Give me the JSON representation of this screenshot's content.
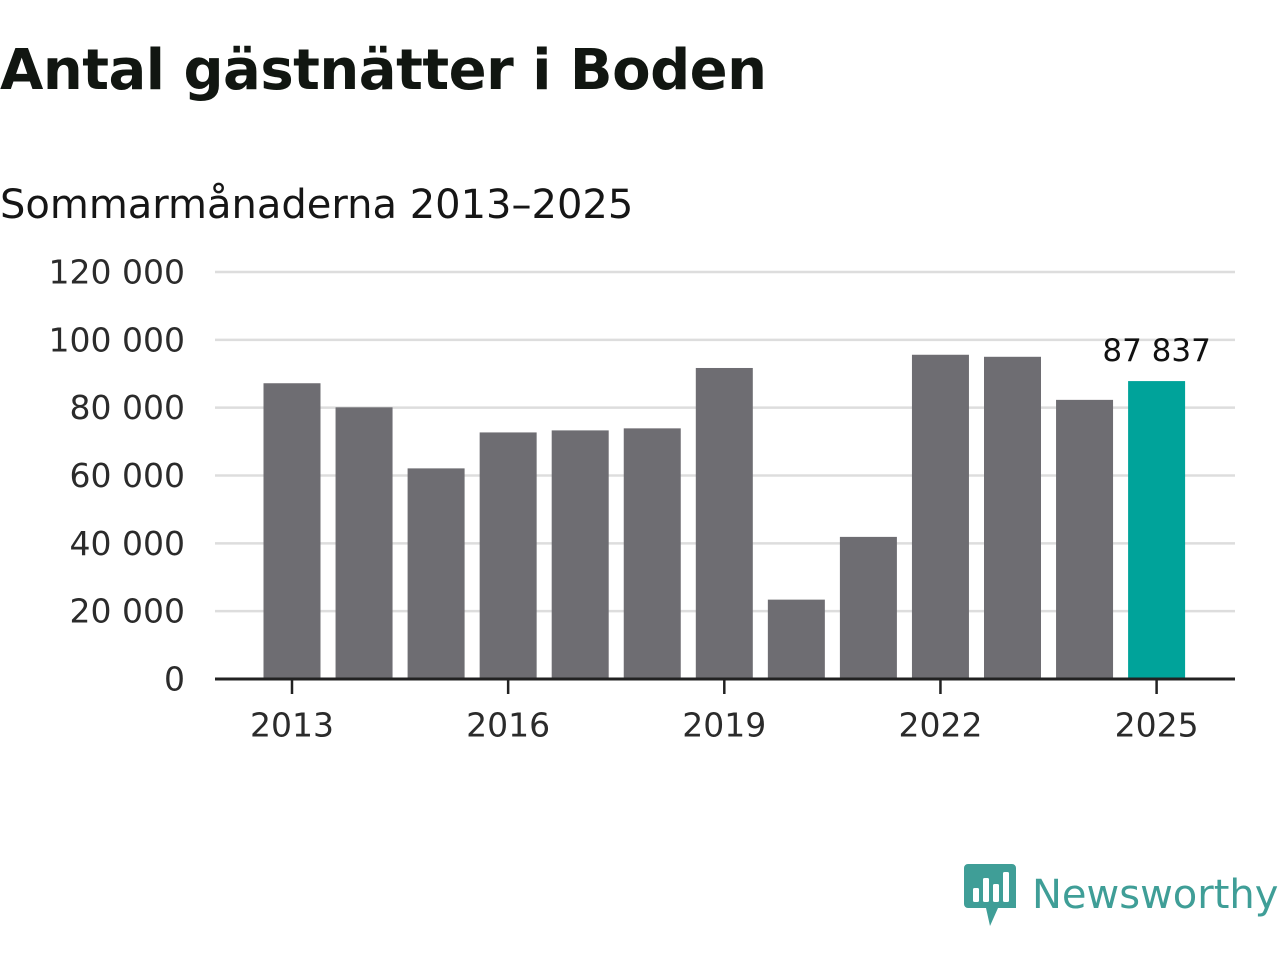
{
  "title": "Antal gästnätter i Boden",
  "subtitle": "Sommarmånaderna 2013–2025",
  "brand": {
    "name": "Newsworthy",
    "icon": "newsworthy-logo-icon",
    "color": "#3f9e97"
  },
  "colors": {
    "bar": "#6e6d72",
    "highlight": "#00a39a",
    "grid": "#dddddd",
    "axis": "#222222"
  },
  "chart_data": {
    "type": "bar",
    "title": "Antal gästnätter i Boden",
    "subtitle": "Sommarmånaderna 2013–2025",
    "xlabel": "",
    "ylabel": "",
    "categories": [
      "2013",
      "2014",
      "2015",
      "2016",
      "2017",
      "2018",
      "2019",
      "2020",
      "2021",
      "2022",
      "2023",
      "2024",
      "2025"
    ],
    "values": [
      87200,
      80100,
      62100,
      72700,
      73300,
      73900,
      91700,
      23400,
      41900,
      95600,
      95000,
      82300,
      87837
    ],
    "highlight_index": 12,
    "data_labels": [
      {
        "index": 12,
        "text": "87 837"
      }
    ],
    "ylim": [
      0,
      120000
    ],
    "yticks": [
      0,
      20000,
      40000,
      60000,
      80000,
      100000,
      120000
    ],
    "ytick_labels": [
      "0",
      "20 000",
      "40 000",
      "60 000",
      "80 000",
      "100 000",
      "120 000"
    ],
    "xticks": [
      "2013",
      "2016",
      "2019",
      "2022",
      "2025"
    ],
    "grid": true,
    "legend": "none"
  }
}
